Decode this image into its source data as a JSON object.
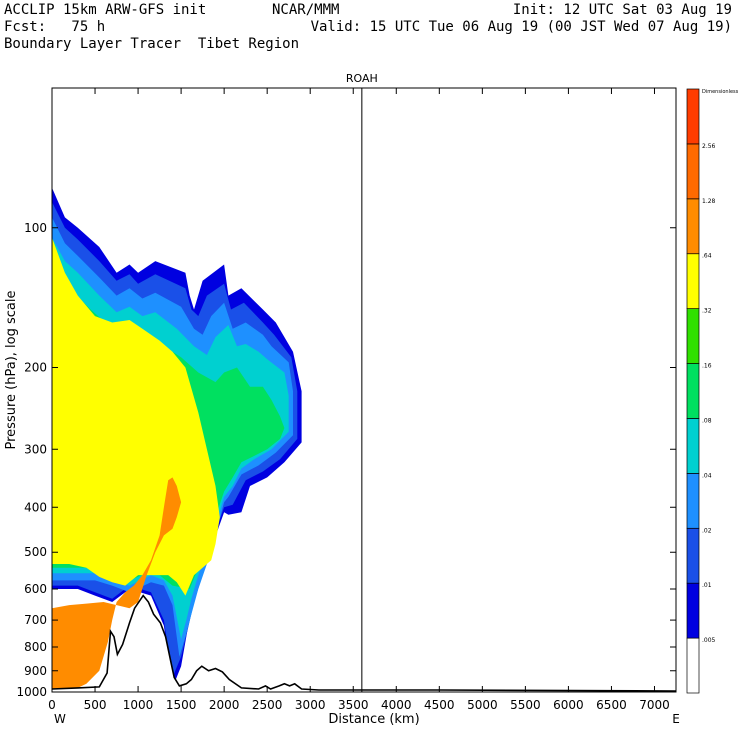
{
  "header": {
    "line1_left": "ACCLIP 15km ARW-GFS init",
    "line1_mid": "NCAR/MMM",
    "line1_right": "Init: 12 UTC Sat 03 Aug 19",
    "line2_left": "Fcst:   75 h",
    "line2_right": "Valid: 15 UTC Tue 06 Aug 19 (00 JST Wed 07 Aug 19)",
    "line3_left": "Boundary Layer Tracer  Tibet Region"
  },
  "chart_data": {
    "type": "heatmap",
    "title": "ROAH",
    "xlabel": "Distance (km)",
    "ylabel": "Pressure (hPa), log scale",
    "x_ticks": [
      "0",
      "500",
      "1000",
      "1500",
      "2000",
      "2500",
      "3000",
      "3500",
      "4000",
      "4500",
      "5000",
      "5500",
      "6000",
      "6500",
      "7000"
    ],
    "x_end_labels": {
      "left": "W",
      "right": "E"
    },
    "xlim": [
      0,
      7250
    ],
    "y_ticks": [
      "100",
      "200",
      "300",
      "400",
      "500",
      "600",
      "700",
      "800",
      "900",
      "1000"
    ],
    "ylim": [
      1000,
      50
    ],
    "y_scale": "log",
    "reference_line_x": 3600,
    "colorbar": {
      "levels": [
        "0.005",
        "0.01",
        "0.02",
        "0.04",
        "0.08",
        "0.16",
        "0.32",
        "0.64",
        "1.28",
        "2.56",
        "Dimensionless"
      ],
      "level_labels": [
        ".005",
        ".01",
        ".02",
        ".04",
        ".08",
        ".16",
        ".32",
        ".64",
        "1.28",
        "2.56",
        "Dimensionless"
      ],
      "colors": [
        "#ffffff",
        "#0000e0",
        "#1a50e8",
        "#1e90ff",
        "#00d0d0",
        "#00e060",
        "#30e000",
        "#ffff00",
        "#ff8c00",
        "#ff6a00",
        "#ff3c00"
      ]
    },
    "terrain_km_hpa": [
      [
        0,
        985
      ],
      [
        300,
        980
      ],
      [
        550,
        975
      ],
      [
        640,
        910
      ],
      [
        680,
        740
      ],
      [
        720,
        760
      ],
      [
        760,
        830
      ],
      [
        820,
        790
      ],
      [
        900,
        710
      ],
      [
        960,
        660
      ],
      [
        1060,
        620
      ],
      [
        1120,
        640
      ],
      [
        1180,
        680
      ],
      [
        1260,
        710
      ],
      [
        1320,
        760
      ],
      [
        1380,
        860
      ],
      [
        1420,
        930
      ],
      [
        1480,
        970
      ],
      [
        1560,
        960
      ],
      [
        1620,
        940
      ],
      [
        1680,
        900
      ],
      [
        1740,
        880
      ],
      [
        1820,
        900
      ],
      [
        1900,
        890
      ],
      [
        1980,
        905
      ],
      [
        2060,
        940
      ],
      [
        2200,
        980
      ],
      [
        2400,
        985
      ],
      [
        2480,
        970
      ],
      [
        2540,
        985
      ],
      [
        2640,
        970
      ],
      [
        2700,
        960
      ],
      [
        2760,
        970
      ],
      [
        2820,
        960
      ],
      [
        2900,
        985
      ],
      [
        3100,
        990
      ],
      [
        4500,
        990
      ],
      [
        7250,
        995
      ]
    ],
    "plume_layers": [
      {
        "level": "0.01",
        "color": "#0000e0",
        "x": [
          0,
          150,
          300,
          550,
          750,
          900,
          1000,
          1200,
          1550,
          1600,
          1650,
          1750,
          2000,
          2050,
          2200,
          2450,
          2600,
          2800,
          2900,
          2900,
          2700,
          2500,
          2300,
          2200,
          2050,
          2000,
          1800,
          1700,
          1600,
          1550,
          1500,
          1400,
          1300,
          1150,
          900,
          700,
          500,
          300,
          0
        ],
        "p": [
          82,
          95,
          100,
          110,
          125,
          120,
          125,
          118,
          125,
          140,
          150,
          130,
          120,
          140,
          135,
          150,
          160,
          185,
          225,
          290,
          320,
          345,
          360,
          410,
          415,
          410,
          520,
          590,
          690,
          780,
          880,
          980,
          720,
          620,
          600,
          640,
          620,
          600,
          600
        ]
      },
      {
        "level": "0.02",
        "color": "#1a50e8",
        "x": [
          0,
          150,
          300,
          550,
          750,
          900,
          1000,
          1200,
          1550,
          1620,
          1700,
          1800,
          2000,
          2080,
          2230,
          2450,
          2580,
          2780,
          2850,
          2850,
          2650,
          2450,
          2250,
          2100,
          2000,
          1850,
          1750,
          1650,
          1580,
          1500,
          1400,
          1300,
          1150,
          900,
          700,
          500,
          300,
          0
        ],
        "p": [
          88,
          100,
          106,
          118,
          130,
          126,
          132,
          126,
          135,
          150,
          155,
          140,
          132,
          150,
          145,
          160,
          170,
          190,
          225,
          285,
          315,
          335,
          350,
          395,
          400,
          480,
          560,
          640,
          730,
          840,
          930,
          700,
          610,
          590,
          630,
          610,
          590,
          590,
          590
        ]
      },
      {
        "level": "0.04",
        "color": "#1e90ff",
        "x": [
          0,
          150,
          300,
          550,
          750,
          900,
          1050,
          1200,
          1500,
          1650,
          1750,
          1850,
          2000,
          2100,
          2250,
          2450,
          2550,
          2750,
          2800,
          2800,
          2600,
          2400,
          2200,
          2050,
          2000,
          1900,
          1800,
          1700,
          1620,
          1550,
          1480,
          1400,
          1300,
          1150,
          900,
          700,
          500,
          300,
          0
        ],
        "p": [
          95,
          108,
          115,
          128,
          140,
          135,
          142,
          138,
          148,
          165,
          170,
          155,
          145,
          165,
          160,
          170,
          180,
          195,
          225,
          280,
          305,
          325,
          340,
          380,
          390,
          460,
          530,
          600,
          680,
          760,
          840,
          650,
          590,
          580,
          610,
          590,
          575,
          575,
          575
        ]
      },
      {
        "level": "0.08",
        "color": "#00d0d0",
        "x": [
          0,
          150,
          300,
          550,
          750,
          900,
          1050,
          1200,
          1450,
          1650,
          1800,
          1900,
          2050,
          2150,
          2250,
          2400,
          2500,
          2700,
          2750,
          2750,
          2550,
          2350,
          2200,
          2100,
          2000,
          1900,
          1800,
          1700,
          1620,
          1560,
          1500,
          1400,
          1300,
          1150,
          900,
          700,
          500,
          300,
          0
        ],
        "p": [
          105,
          118,
          125,
          140,
          152,
          148,
          155,
          152,
          165,
          180,
          188,
          172,
          162,
          180,
          178,
          185,
          192,
          205,
          230,
          275,
          300,
          315,
          330,
          360,
          380,
          440,
          500,
          560,
          630,
          700,
          770,
          620,
          575,
          560,
          590,
          575,
          555,
          555,
          555
        ]
      },
      {
        "level": "0.16",
        "color": "#00e060",
        "x": [
          0,
          200,
          450,
          700,
          900,
          1100,
          1300,
          1500,
          1700,
          1900,
          2000,
          2150,
          2300,
          2450,
          2550,
          2650,
          2700,
          2650,
          2500,
          2350,
          2200,
          2100,
          2000,
          1900,
          1800,
          1700,
          1600,
          1400,
          1250,
          1100,
          900,
          700,
          500,
          300,
          0
        ],
        "p": [
          110,
          135,
          150,
          165,
          165,
          172,
          180,
          190,
          205,
          215,
          205,
          200,
          220,
          220,
          235,
          255,
          270,
          285,
          300,
          310,
          320,
          345,
          370,
          420,
          480,
          540,
          600,
          590,
          560,
          555,
          575,
          560,
          540,
          540,
          540
        ]
      },
      {
        "level": "0.32",
        "color": "#ffff00",
        "x": [
          0,
          150,
          300,
          500,
          700,
          900,
          1050,
          1250,
          1400,
          1550,
          1700,
          1800,
          1900,
          1950,
          1900,
          1850,
          1750,
          1650,
          1550,
          1450,
          1350,
          1250,
          1150,
          1000,
          850,
          700,
          550,
          400,
          200,
          0
        ],
        "p": [
          105,
          125,
          140,
          155,
          160,
          158,
          165,
          175,
          185,
          200,
          250,
          300,
          360,
          420,
          480,
          520,
          540,
          560,
          620,
          580,
          560,
          560,
          560,
          560,
          590,
          580,
          565,
          540,
          530,
          530
        ]
      },
      {
        "level": "0.64",
        "color": "#ff8c00",
        "x": [
          0,
          200,
          400,
          600,
          750,
          900,
          1000,
          1100,
          1200,
          1300,
          1400,
          1450,
          1500,
          1450,
          1400,
          1350,
          1300,
          1250,
          1150,
          1050,
          950,
          850,
          750,
          700,
          650,
          550,
          400,
          300,
          200,
          0
        ],
        "p": [
          660,
          650,
          645,
          640,
          650,
          660,
          640,
          560,
          500,
          460,
          445,
          420,
          390,
          360,
          345,
          350,
          400,
          460,
          520,
          560,
          590,
          610,
          640,
          700,
          780,
          900,
          960,
          980,
          985,
          985
        ]
      }
    ]
  }
}
